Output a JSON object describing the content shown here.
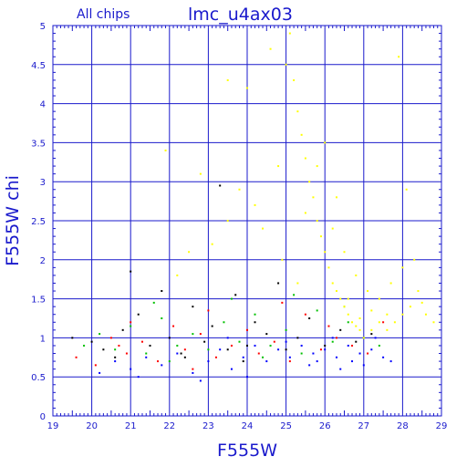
{
  "chart_data": {
    "type": "scatter",
    "title": "lmc_u4ax03",
    "subtitle": "All chips",
    "xlabel": "F555W",
    "ylabel": "F555W chi",
    "xlim": [
      19,
      29
    ],
    "ylim": [
      0,
      5
    ],
    "xticks": [
      "19",
      "20",
      "21",
      "22",
      "23",
      "24",
      "25",
      "26",
      "27",
      "28",
      "29"
    ],
    "yticks": [
      "0",
      "0.5",
      "1",
      "1.5",
      "2",
      "2.5",
      "3",
      "3.5",
      "4",
      "4.5",
      "5"
    ],
    "grid": true,
    "colors": {
      "axis": "#1a1acc",
      "grid": "#1a1acc",
      "black": "#000000",
      "red": "#ff0000",
      "green": "#00c000",
      "blue": "#0000ff",
      "yellow": "#ffff00"
    },
    "series": [
      {
        "color": "black",
        "points": [
          [
            19.5,
            1.0
          ],
          [
            20.0,
            0.95
          ],
          [
            20.3,
            0.85
          ],
          [
            20.8,
            1.1
          ],
          [
            21.2,
            1.3
          ],
          [
            21.5,
            0.9
          ],
          [
            21.8,
            1.6
          ],
          [
            22.0,
            1.0
          ],
          [
            22.3,
            0.8
          ],
          [
            22.6,
            1.4
          ],
          [
            22.9,
            0.95
          ],
          [
            23.1,
            1.15
          ],
          [
            23.3,
            2.95
          ],
          [
            23.5,
            0.85
          ],
          [
            23.7,
            1.55
          ],
          [
            24.0,
            0.9
          ],
          [
            24.2,
            1.2
          ],
          [
            24.5,
            1.05
          ],
          [
            24.8,
            1.7
          ],
          [
            25.0,
            0.85
          ],
          [
            25.3,
            1.0
          ],
          [
            25.6,
            1.25
          ],
          [
            26.0,
            0.9
          ],
          [
            26.4,
            1.1
          ],
          [
            26.8,
            0.95
          ],
          [
            27.2,
            1.05
          ],
          [
            21.0,
            1.85
          ],
          [
            22.4,
            0.75
          ],
          [
            23.9,
            0.7
          ],
          [
            20.6,
            0.75
          ]
        ]
      },
      {
        "color": "red",
        "points": [
          [
            19.6,
            0.75
          ],
          [
            20.1,
            0.65
          ],
          [
            20.5,
            1.0
          ],
          [
            20.9,
            0.8
          ],
          [
            21.3,
            0.95
          ],
          [
            21.7,
            0.7
          ],
          [
            22.1,
            1.15
          ],
          [
            22.4,
            0.85
          ],
          [
            22.8,
            1.05
          ],
          [
            23.2,
            0.75
          ],
          [
            23.6,
            0.9
          ],
          [
            24.0,
            1.1
          ],
          [
            24.3,
            0.8
          ],
          [
            24.7,
            0.95
          ],
          [
            25.1,
            0.7
          ],
          [
            25.5,
            1.3
          ],
          [
            25.9,
            0.85
          ],
          [
            26.3,
            1.0
          ],
          [
            26.7,
            0.9
          ],
          [
            27.1,
            0.8
          ],
          [
            27.5,
            1.2
          ],
          [
            21.0,
            1.2
          ],
          [
            23.0,
            1.35
          ],
          [
            24.9,
            1.45
          ],
          [
            26.1,
            1.15
          ],
          [
            22.6,
            0.6
          ],
          [
            20.7,
            0.9
          ]
        ]
      },
      {
        "color": "green",
        "points": [
          [
            19.8,
            0.9
          ],
          [
            20.2,
            1.05
          ],
          [
            20.6,
            0.85
          ],
          [
            21.0,
            1.15
          ],
          [
            21.4,
            0.8
          ],
          [
            21.8,
            1.25
          ],
          [
            22.2,
            0.9
          ],
          [
            22.6,
            1.05
          ],
          [
            23.0,
            0.85
          ],
          [
            23.4,
            1.2
          ],
          [
            23.8,
            0.95
          ],
          [
            24.2,
            1.3
          ],
          [
            24.6,
            0.9
          ],
          [
            25.0,
            1.1
          ],
          [
            25.4,
            0.8
          ],
          [
            25.8,
            1.35
          ],
          [
            26.2,
            0.95
          ],
          [
            26.6,
            1.2
          ],
          [
            27.0,
            1.0
          ],
          [
            27.4,
            0.9
          ],
          [
            21.6,
            1.45
          ],
          [
            23.6,
            1.5
          ],
          [
            25.2,
            1.55
          ],
          [
            26.5,
            1.4
          ],
          [
            22.0,
            0.7
          ],
          [
            24.4,
            0.75
          ]
        ]
      },
      {
        "color": "blue",
        "points": [
          [
            20.2,
            0.55
          ],
          [
            20.6,
            0.7
          ],
          [
            21.0,
            0.6
          ],
          [
            21.4,
            0.75
          ],
          [
            21.8,
            0.65
          ],
          [
            22.2,
            0.8
          ],
          [
            22.6,
            0.55
          ],
          [
            23.0,
            0.7
          ],
          [
            23.3,
            0.85
          ],
          [
            23.6,
            0.6
          ],
          [
            23.9,
            0.75
          ],
          [
            24.2,
            0.9
          ],
          [
            24.5,
            0.7
          ],
          [
            24.8,
            0.85
          ],
          [
            25.1,
            0.75
          ],
          [
            25.4,
            0.9
          ],
          [
            25.7,
            0.8
          ],
          [
            26.0,
            0.85
          ],
          [
            26.3,
            0.75
          ],
          [
            26.6,
            0.9
          ],
          [
            26.9,
            0.8
          ],
          [
            27.2,
            0.85
          ],
          [
            27.5,
            0.75
          ],
          [
            27.7,
            0.7
          ],
          [
            25.6,
            0.65
          ],
          [
            26.4,
            0.6
          ],
          [
            27.0,
            0.65
          ],
          [
            24.0,
            0.5
          ],
          [
            22.8,
            0.45
          ],
          [
            21.2,
            0.5
          ],
          [
            25.0,
            0.95
          ],
          [
            26.2,
            1.0
          ],
          [
            27.3,
            1.0
          ],
          [
            23.5,
            1.0
          ],
          [
            25.8,
            0.7
          ],
          [
            26.7,
            0.7
          ]
        ]
      },
      {
        "color": "yellow",
        "points": [
          [
            25.0,
            4.5
          ],
          [
            25.1,
            4.9
          ],
          [
            25.2,
            4.3
          ],
          [
            25.3,
            3.9
          ],
          [
            25.4,
            3.6
          ],
          [
            25.5,
            3.3
          ],
          [
            25.6,
            3.0
          ],
          [
            25.7,
            2.8
          ],
          [
            25.8,
            2.5
          ],
          [
            25.9,
            2.3
          ],
          [
            26.0,
            2.1
          ],
          [
            26.1,
            1.9
          ],
          [
            26.2,
            1.7
          ],
          [
            26.3,
            1.6
          ],
          [
            26.4,
            1.5
          ],
          [
            26.5,
            1.4
          ],
          [
            26.6,
            1.3
          ],
          [
            26.7,
            1.2
          ],
          [
            26.8,
            1.15
          ],
          [
            26.9,
            1.1
          ],
          [
            27.0,
            1.0
          ],
          [
            27.2,
            1.1
          ],
          [
            27.4,
            1.2
          ],
          [
            27.6,
            1.3
          ],
          [
            27.8,
            1.2
          ],
          [
            28.0,
            1.3
          ],
          [
            28.2,
            1.4
          ],
          [
            28.4,
            1.6
          ],
          [
            28.6,
            1.3
          ],
          [
            28.8,
            1.2
          ],
          [
            26.2,
            2.4
          ],
          [
            26.5,
            2.1
          ],
          [
            26.8,
            1.8
          ],
          [
            27.1,
            1.6
          ],
          [
            27.4,
            1.5
          ],
          [
            27.7,
            1.7
          ],
          [
            28.0,
            1.9
          ],
          [
            28.3,
            2.0
          ],
          [
            25.5,
            2.6
          ],
          [
            25.8,
            3.2
          ],
          [
            26.0,
            3.5
          ],
          [
            26.3,
            2.8
          ],
          [
            24.6,
            4.7
          ],
          [
            24.8,
            3.2
          ],
          [
            24.4,
            2.4
          ],
          [
            24.2,
            2.7
          ],
          [
            23.8,
            2.9
          ],
          [
            23.5,
            2.5
          ],
          [
            23.1,
            2.2
          ],
          [
            22.8,
            3.1
          ],
          [
            22.5,
            2.1
          ],
          [
            22.2,
            1.8
          ],
          [
            21.9,
            3.4
          ],
          [
            24.9,
            2.0
          ],
          [
            25.3,
            1.7
          ],
          [
            26.6,
            1.5
          ],
          [
            27.2,
            1.35
          ],
          [
            27.6,
            1.1
          ],
          [
            26.9,
            1.25
          ],
          [
            28.5,
            1.45
          ],
          [
            24.0,
            4.2
          ],
          [
            23.5,
            4.3
          ],
          [
            27.9,
            4.6
          ],
          [
            28.1,
            2.9
          ]
        ]
      }
    ]
  }
}
